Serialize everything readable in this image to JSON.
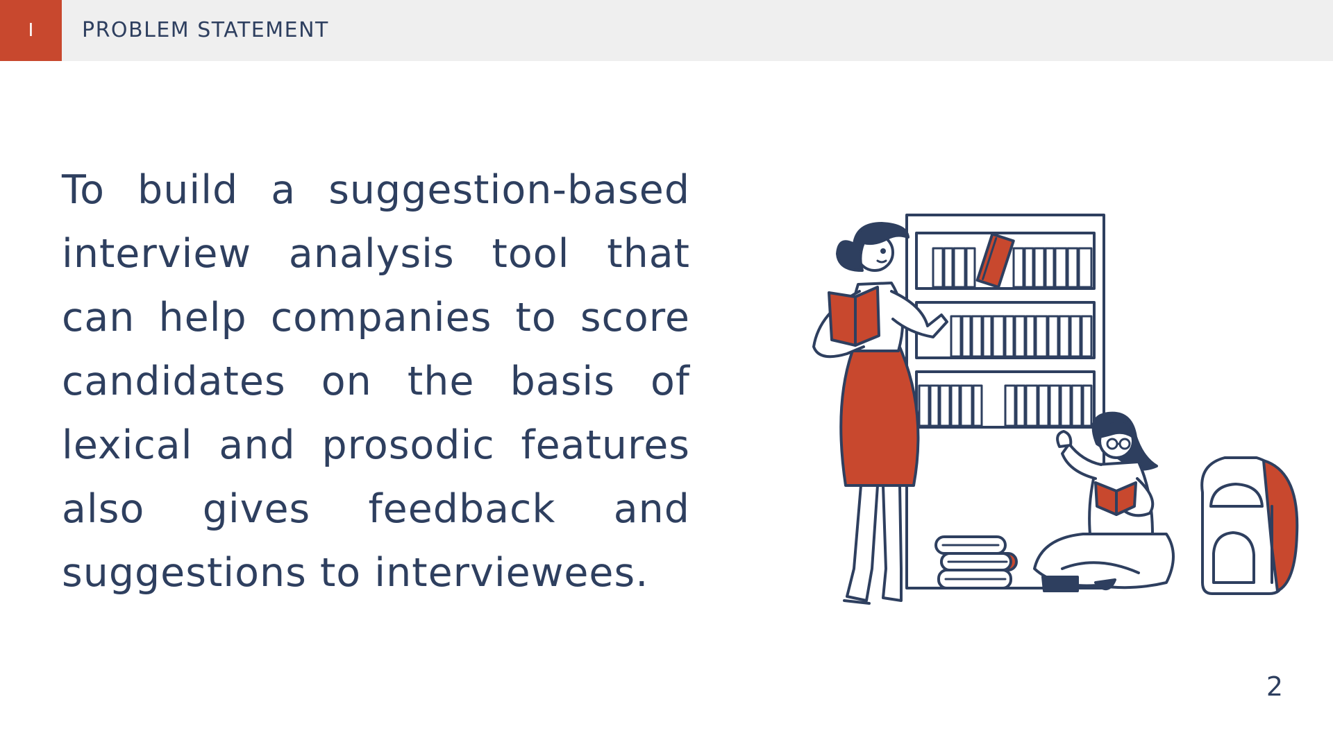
{
  "header": {
    "section_numeral": "I",
    "section_title": "PROBLEM STATEMENT"
  },
  "main": {
    "statement": "To build a suggestion-based interview analysis tool that can help companies to score candidates on the basis of lexical and prosodic features also gives feedback and suggestions to interviewees."
  },
  "footer": {
    "page_number": "2"
  },
  "illustration": {
    "icon": "library-reading-illustration",
    "colors": {
      "outline": "#2e3f5f",
      "accent": "#c8482e",
      "fill": "#ffffff"
    }
  }
}
